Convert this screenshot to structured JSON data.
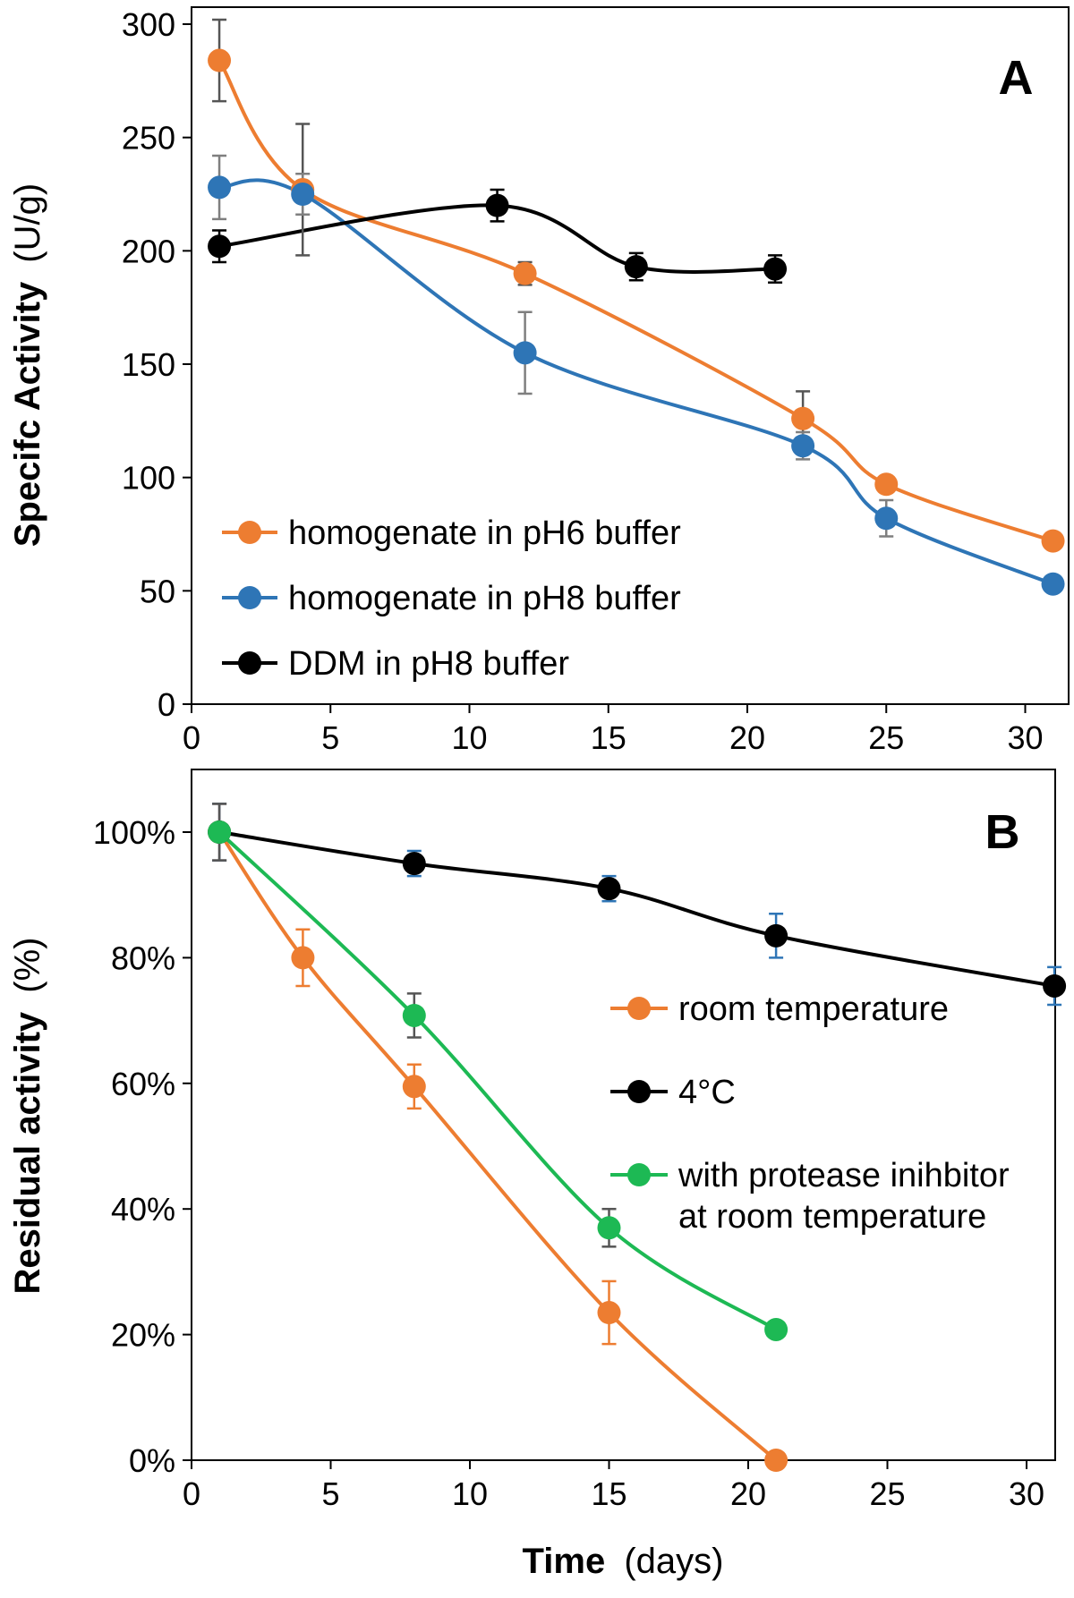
{
  "colors": {
    "orange": "#ED7D31",
    "blue": "#2E75B6",
    "black": "#000000",
    "green": "#1DB954",
    "axis": "#000000",
    "errbar_gray": "#7F7F7F"
  },
  "chart_data": [
    {
      "panel": "A",
      "type": "line",
      "ylabel_bold": "Specifc Activity",
      "ylabel_unit": "(U/g)",
      "xlabel_bold": "",
      "xlabel_unit": "",
      "xlim": [
        0,
        31.5
      ],
      "ylim": [
        0,
        300
      ],
      "xticks": [
        0,
        5,
        10,
        15,
        20,
        25,
        30
      ],
      "xtick_labels": [
        "0",
        "5",
        "10",
        "15",
        "20",
        "25",
        "30"
      ],
      "yticks": [
        0,
        50,
        100,
        150,
        200,
        250,
        300
      ],
      "ytick_labels": [
        "0",
        "50",
        "100",
        "150",
        "200",
        "250",
        "300"
      ],
      "grid": false,
      "legend_position": "bottom-left",
      "series": [
        {
          "name": "homogenate in pH6 buffer",
          "color": "#ED7D31",
          "errcolor": "#555555",
          "x": [
            1,
            4,
            12,
            22,
            25,
            31
          ],
          "y": [
            284,
            227,
            190,
            126,
            97,
            72
          ],
          "err": [
            18,
            29,
            5,
            12,
            0,
            0
          ]
        },
        {
          "name": "homogenate in pH8 buffer",
          "color": "#2E75B6",
          "errcolor": "#7F7F7F",
          "x": [
            1,
            4,
            12,
            22,
            25,
            31
          ],
          "y": [
            228,
            225,
            155,
            114,
            82,
            53
          ],
          "err": [
            14,
            9,
            18,
            6,
            8,
            0
          ]
        },
        {
          "name": "DDM in pH8 buffer",
          "color": "#000000",
          "errcolor": "#000000",
          "x": [
            1,
            11,
            16,
            21
          ],
          "y": [
            202,
            220,
            193,
            192
          ],
          "err": [
            7,
            7,
            6,
            6
          ]
        }
      ]
    },
    {
      "panel": "B",
      "type": "line",
      "ylabel_bold": "Residual activity",
      "ylabel_unit": "(%)",
      "xlabel_bold": "Time",
      "xlabel_unit": "(days)",
      "xlim": [
        0,
        31
      ],
      "ylim": [
        0,
        110
      ],
      "xticks": [
        0,
        5,
        10,
        15,
        20,
        25,
        30
      ],
      "xtick_labels": [
        "0",
        "5",
        "10",
        "15",
        "20",
        "25",
        "30"
      ],
      "yticks": [
        0,
        20,
        40,
        60,
        80,
        100
      ],
      "ytick_labels": [
        "0%",
        "20%",
        "40%",
        "60%",
        "80%",
        "100%"
      ],
      "grid": false,
      "legend_position": "right",
      "series": [
        {
          "name": "room temperature",
          "name_line2": "",
          "color": "#ED7D31",
          "errcolor": "#ED7D31",
          "x": [
            1,
            4,
            8,
            15,
            21
          ],
          "y": [
            100,
            80,
            59.5,
            23.5,
            0
          ],
          "err": [
            4.5,
            4.5,
            3.5,
            5,
            0
          ]
        },
        {
          "name": "4°C",
          "name_line2": "",
          "color": "#000000",
          "errcolor": "#2E75B6",
          "x": [
            1,
            8,
            15,
            21,
            31
          ],
          "y": [
            100,
            95,
            91,
            83.5,
            75.5
          ],
          "err": [
            4.5,
            2,
            2,
            3.5,
            3
          ]
        },
        {
          "name": "with protease inihbitor",
          "name_line2": "at room temperature",
          "color": "#1DB954",
          "errcolor": "#555555",
          "x": [
            1,
            8,
            15,
            21
          ],
          "y": [
            100,
            70.8,
            37,
            20.8
          ],
          "err": [
            4.5,
            3.5,
            3,
            0
          ]
        }
      ]
    }
  ]
}
